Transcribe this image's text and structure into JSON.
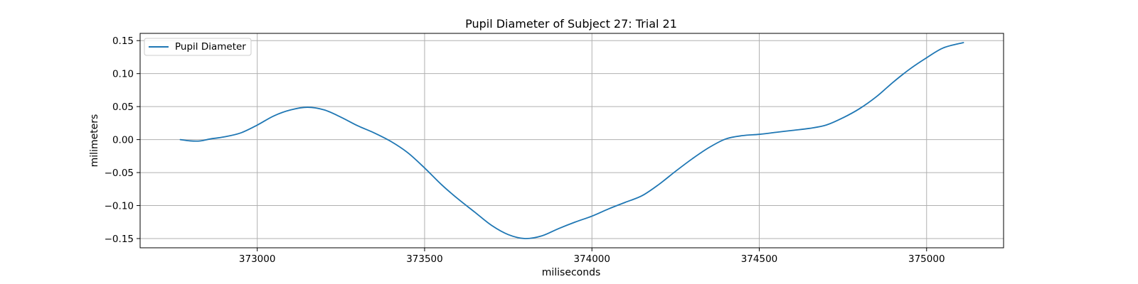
{
  "chart_data": {
    "type": "line",
    "title": "Pupil Diameter of Subject 27: Trial 21",
    "xlabel": "miliseconds",
    "ylabel": "milimeters",
    "xlim": [
      372650,
      375230
    ],
    "ylim": [
      -0.164,
      0.161
    ],
    "xticks": [
      373000,
      373500,
      374000,
      374500,
      375000
    ],
    "xtick_labels": [
      "373000",
      "373500",
      "374000",
      "374500",
      "375000"
    ],
    "yticks": [
      0.15,
      0.1,
      0.05,
      0.0,
      -0.05,
      -0.1,
      -0.15
    ],
    "ytick_labels": [
      "0.15",
      "0.10",
      "0.05",
      "0.00",
      "−0.05",
      "−0.10",
      "−0.15"
    ],
    "grid": true,
    "legend": {
      "position": "top-left",
      "entries": [
        "Pupil Diameter"
      ]
    },
    "colors": {
      "series": "#1f77b4",
      "grid": "#b0b0b0"
    },
    "series": [
      {
        "name": "Pupil Diameter",
        "x": [
          372770,
          372800,
          372830,
          372860,
          372900,
          372950,
          373000,
          373050,
          373100,
          373150,
          373200,
          373250,
          373300,
          373350,
          373400,
          373450,
          373500,
          373550,
          373600,
          373650,
          373700,
          373750,
          373800,
          373850,
          373900,
          373950,
          374000,
          374050,
          374100,
          374150,
          374200,
          374250,
          374300,
          374350,
          374400,
          374450,
          374500,
          374550,
          374600,
          374650,
          374700,
          374750,
          374800,
          374850,
          374900,
          374950,
          375000,
          375050,
          375110
        ],
        "y": [
          0.0,
          -0.002,
          -0.002,
          0.001,
          0.004,
          0.01,
          0.022,
          0.036,
          0.045,
          0.049,
          0.045,
          0.034,
          0.021,
          0.01,
          -0.003,
          -0.02,
          -0.043,
          -0.068,
          -0.09,
          -0.11,
          -0.13,
          -0.144,
          -0.15,
          -0.146,
          -0.135,
          -0.125,
          -0.116,
          -0.105,
          -0.095,
          -0.085,
          -0.068,
          -0.048,
          -0.029,
          -0.012,
          0.001,
          0.006,
          0.008,
          0.011,
          0.014,
          0.017,
          0.022,
          0.033,
          0.047,
          0.065,
          0.087,
          0.107,
          0.124,
          0.139,
          0.147
        ]
      }
    ]
  }
}
